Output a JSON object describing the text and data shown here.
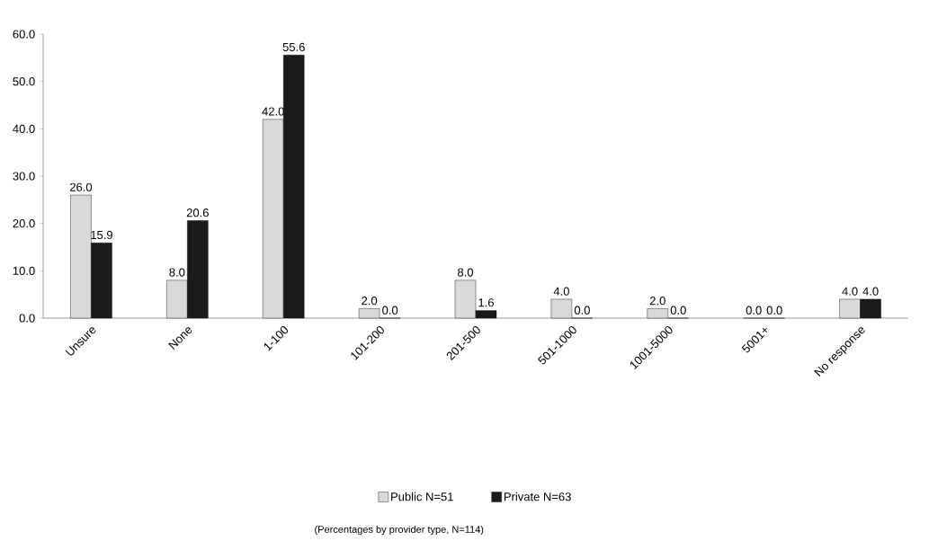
{
  "chart_data": {
    "type": "bar",
    "categories": [
      "Unsure",
      "None",
      "1-100",
      "101-200",
      "201-500",
      "501-1000",
      "1001-5000",
      "5001+",
      "No response"
    ],
    "series": [
      {
        "name": "Public N=51",
        "color": "#d9d9d9",
        "values": [
          26.0,
          8.0,
          42.0,
          2.0,
          8.0,
          4.0,
          2.0,
          0.0,
          4.0
        ],
        "value_labels": [
          "26.0",
          "8.0",
          "42.0",
          "2.0",
          "8.0",
          "4.0",
          "2.0",
          "0.0",
          "4.0"
        ]
      },
      {
        "name": "Private N=63",
        "color": "#1a1a1a",
        "values": [
          15.9,
          20.6,
          55.6,
          0.0,
          1.6,
          0.0,
          0.0,
          0.0,
          4.0
        ],
        "value_labels": [
          "15.9",
          "20.6",
          "55.6",
          "0.0",
          "1.6",
          "0.0",
          "0.0",
          "0.0",
          "4.0"
        ]
      }
    ],
    "ylim": [
      0,
      60
    ],
    "yticks": [
      {
        "value": 0,
        "label": "0.0"
      },
      {
        "value": 10,
        "label": "10.0"
      },
      {
        "value": 20,
        "label": "20.0"
      },
      {
        "value": 30,
        "label": "30.0"
      },
      {
        "value": 40,
        "label": "40.0"
      },
      {
        "value": 50,
        "label": "50.0"
      },
      {
        "value": 60,
        "label": "60.0"
      }
    ],
    "legend": "bottom",
    "annotations": [
      "(Percentages by provider type, N=114)"
    ]
  }
}
